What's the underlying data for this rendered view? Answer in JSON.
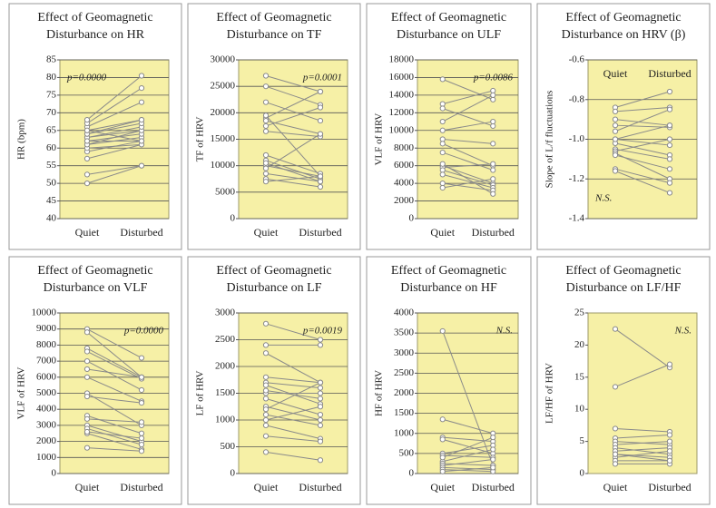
{
  "chart_data": [
    {
      "type": "slope",
      "title": [
        "Effect of Geomagnetic",
        "Disturbance on HR"
      ],
      "y_label": "HR (bpm)",
      "categories": [
        "Quiet",
        "Disturbed"
      ],
      "ylim": [
        40,
        85
      ],
      "yticks": [
        40,
        45,
        50,
        55,
        60,
        65,
        70,
        75,
        80,
        85
      ],
      "annotation": "p=0.0000",
      "annotation_position": "top-left",
      "xlabels": "bottom",
      "grid": true,
      "color": "#8a8a8a",
      "series": [
        {
          "values": [
            50,
            55
          ]
        },
        {
          "values": [
            52.5,
            55
          ]
        },
        {
          "values": [
            57,
            61
          ]
        },
        {
          "values": [
            59,
            62
          ]
        },
        {
          "values": [
            60,
            61
          ]
        },
        {
          "values": [
            61,
            63
          ]
        },
        {
          "values": [
            61,
            65
          ]
        },
        {
          "values": [
            62,
            64
          ]
        },
        {
          "values": [
            63,
            65
          ]
        },
        {
          "values": [
            63,
            66
          ]
        },
        {
          "values": [
            64,
            68
          ]
        },
        {
          "values": [
            64,
            67
          ]
        },
        {
          "values": [
            65,
            68
          ]
        },
        {
          "values": [
            66,
            73
          ]
        },
        {
          "values": [
            67,
            77
          ]
        },
        {
          "values": [
            68,
            80.5
          ]
        },
        {
          "values": [
            62,
            62
          ]
        },
        {
          "values": [
            65,
            62
          ]
        }
      ]
    },
    {
      "type": "slope",
      "title": [
        "Effect of Geomagnetic",
        "Disturbance on TF"
      ],
      "y_label": "TF of HRV",
      "categories": [
        "Quiet",
        "Disturbed"
      ],
      "ylim": [
        0,
        30000
      ],
      "yticks": [
        0,
        5000,
        10000,
        15000,
        20000,
        25000,
        30000
      ],
      "annotation": "p=0.0001",
      "annotation_position": "top-right",
      "xlabels": "bottom",
      "grid": true,
      "color": "#8a8a8a",
      "series": [
        {
          "values": [
            27000,
            24000
          ]
        },
        {
          "values": [
            25000,
            21500
          ]
        },
        {
          "values": [
            22000,
            18500
          ]
        },
        {
          "values": [
            19000,
            24000
          ]
        },
        {
          "values": [
            18500,
            16000
          ]
        },
        {
          "values": [
            17500,
            21000
          ]
        },
        {
          "values": [
            16500,
            15500
          ]
        },
        {
          "values": [
            12000,
            8500
          ]
        },
        {
          "values": [
            11000,
            7500
          ]
        },
        {
          "values": [
            10000,
            8000
          ]
        },
        {
          "values": [
            9500,
            16000
          ]
        },
        {
          "values": [
            8500,
            7000
          ]
        },
        {
          "values": [
            7500,
            6000
          ]
        },
        {
          "values": [
            7000,
            8000
          ]
        },
        {
          "values": [
            19500,
            8000
          ]
        },
        {
          "values": [
            10500,
            7000
          ]
        }
      ]
    },
    {
      "type": "slope",
      "title": [
        "Effect of Geomagnetic",
        "Disturbance on ULF"
      ],
      "y_label": "VLF of HRV",
      "categories": [
        "Quiet",
        "Disturbed"
      ],
      "ylim": [
        0,
        18000
      ],
      "yticks": [
        0,
        2000,
        4000,
        6000,
        8000,
        10000,
        12000,
        14000,
        16000,
        18000
      ],
      "annotation": "p=0.0086",
      "annotation_position": "top-right",
      "xlabels": "bottom",
      "grid": true,
      "color": "#8a8a8a",
      "series": [
        {
          "values": [
            15800,
            13500
          ]
        },
        {
          "values": [
            13000,
            14500
          ]
        },
        {
          "values": [
            12500,
            10500
          ]
        },
        {
          "values": [
            11000,
            14000
          ]
        },
        {
          "values": [
            10000,
            11000
          ]
        },
        {
          "values": [
            9000,
            8500
          ]
        },
        {
          "values": [
            8500,
            6000
          ]
        },
        {
          "values": [
            7500,
            5500
          ]
        },
        {
          "values": [
            6000,
            4000
          ]
        },
        {
          "values": [
            5800,
            6200
          ]
        },
        {
          "values": [
            5500,
            3800
          ]
        },
        {
          "values": [
            5000,
            3500
          ]
        },
        {
          "values": [
            4000,
            3200
          ]
        },
        {
          "values": [
            3500,
            4500
          ]
        },
        {
          "values": [
            6200,
            2800
          ]
        }
      ]
    },
    {
      "type": "slope",
      "title": [
        "Effect of Geomagnetic",
        "Disturbance on HRV (β)"
      ],
      "y_label": "Slope of L/f fluctuations",
      "categories": [
        "Quiet",
        "Disturbed"
      ],
      "ylim": [
        -1.4,
        -0.6
      ],
      "yticks": [
        -1.4,
        -1.2,
        {
          "value": -1,
          "label": "-1.0"
        },
        -0.8,
        -0.6
      ],
      "annotation": "N.S.",
      "annotation_position": "bottom-left",
      "xlabels": "top",
      "grid": true,
      "color": "#8a8a8a",
      "series": [
        {
          "values": [
            -0.84,
            -0.76
          ]
        },
        {
          "values": [
            -0.86,
            -0.84
          ]
        },
        {
          "values": [
            -0.9,
            -0.93
          ]
        },
        {
          "values": [
            -0.93,
            -0.94
          ]
        },
        {
          "values": [
            -0.96,
            -0.85
          ]
        },
        {
          "values": [
            -1,
            -1.03
          ]
        },
        {
          "values": [
            -1.02,
            -1.08
          ]
        },
        {
          "values": [
            -1.05,
            -1.1
          ]
        },
        {
          "values": [
            -1.06,
            -1
          ]
        },
        {
          "values": [
            -1.07,
            -1.2
          ]
        },
        {
          "values": [
            -1.08,
            -1.15
          ]
        },
        {
          "values": [
            -1.15,
            -1.22
          ]
        },
        {
          "values": [
            -1.16,
            -1.27
          ]
        },
        {
          "values": [
            -1,
            -0.93
          ]
        }
      ]
    },
    {
      "type": "slope",
      "title": [
        "Effect of Geomagnetic",
        "Disturbance on VLF"
      ],
      "y_label": "VLF of HRV",
      "categories": [
        "Quiet",
        "Disturbed"
      ],
      "ylim": [
        0,
        10000
      ],
      "yticks": [
        0,
        1000,
        2000,
        3000,
        4000,
        5000,
        6000,
        7000,
        8000,
        9000,
        10000
      ],
      "annotation": "p=0.0000",
      "annotation_position": "top-right",
      "xlabels": "bottom",
      "grid": true,
      "color": "#8a8a8a",
      "series": [
        {
          "values": [
            9000,
            7200
          ]
        },
        {
          "values": [
            8800,
            6000
          ]
        },
        {
          "values": [
            7800,
            6000
          ]
        },
        {
          "values": [
            7600,
            5900
          ]
        },
        {
          "values": [
            7000,
            5200
          ]
        },
        {
          "values": [
            6500,
            6000
          ]
        },
        {
          "values": [
            6000,
            4500
          ]
        },
        {
          "values": [
            5000,
            3000
          ]
        },
        {
          "values": [
            4800,
            4400
          ]
        },
        {
          "values": [
            3600,
            2500
          ]
        },
        {
          "values": [
            3400,
            3200
          ]
        },
        {
          "values": [
            3000,
            2000
          ]
        },
        {
          "values": [
            2800,
            1800
          ]
        },
        {
          "values": [
            2500,
            1500
          ]
        },
        {
          "values": [
            1600,
            1400
          ]
        },
        {
          "values": [
            2600,
            2200
          ]
        }
      ]
    },
    {
      "type": "slope",
      "title": [
        "Effect of Geomagnetic",
        "Disturbance on LF"
      ],
      "y_label": "LF of HRV",
      "categories": [
        "Quiet",
        "Disturbed"
      ],
      "ylim": [
        0,
        3000
      ],
      "yticks": [
        0,
        500,
        1000,
        1500,
        2000,
        2500,
        3000
      ],
      "annotation": "p=0.0019",
      "annotation_position": "top-right",
      "xlabels": "bottom",
      "grid": true,
      "color": "#8a8a8a",
      "series": [
        {
          "values": [
            2800,
            2500
          ]
        },
        {
          "values": [
            2400,
            2400
          ]
        },
        {
          "values": [
            2250,
            1700
          ]
        },
        {
          "values": [
            1800,
            1700
          ]
        },
        {
          "values": [
            1700,
            1600
          ]
        },
        {
          "values": [
            1650,
            1300
          ]
        },
        {
          "values": [
            1500,
            1500
          ]
        },
        {
          "values": [
            1400,
            1100
          ]
        },
        {
          "values": [
            1250,
            1000
          ]
        },
        {
          "values": [
            1200,
            1700
          ]
        },
        {
          "values": [
            1100,
            900
          ]
        },
        {
          "values": [
            1000,
            1250
          ]
        },
        {
          "values": [
            900,
            650
          ]
        },
        {
          "values": [
            700,
            600
          ]
        },
        {
          "values": [
            400,
            250
          ]
        },
        {
          "values": [
            1550,
            1400
          ]
        }
      ]
    },
    {
      "type": "slope",
      "title": [
        "Effect of Geomagnetic",
        "Disturbance on HF"
      ],
      "y_label": "HF of HRV",
      "categories": [
        "Quiet",
        "Disturbed"
      ],
      "ylim": [
        0,
        4000
      ],
      "yticks": [
        0,
        500,
        1000,
        1500,
        2000,
        2500,
        3000,
        3500,
        4000
      ],
      "annotation": "N.S.",
      "annotation_position": "top-right",
      "xlabels": "bottom",
      "grid": true,
      "color": "#8a8a8a",
      "series": [
        {
          "values": [
            3550,
            200
          ]
        },
        {
          "values": [
            1350,
            1000
          ]
        },
        {
          "values": [
            900,
            800
          ]
        },
        {
          "values": [
            850,
            500
          ]
        },
        {
          "values": [
            500,
            700
          ]
        },
        {
          "values": [
            450,
            400
          ]
        },
        {
          "values": [
            300,
            600
          ]
        },
        {
          "values": [
            250,
            200
          ]
        },
        {
          "values": [
            200,
            350
          ]
        },
        {
          "values": [
            150,
            100
          ]
        },
        {
          "values": [
            100,
            50
          ]
        },
        {
          "values": [
            50,
            150
          ]
        },
        {
          "values": [
            400,
            900
          ]
        }
      ]
    },
    {
      "type": "slope",
      "title": [
        "Effect of Geomagnetic",
        "Disturbance on LF/HF"
      ],
      "y_label": "LF/HF of HRV",
      "categories": [
        "Quiet",
        "Disturbed"
      ],
      "ylim": [
        0,
        25
      ],
      "yticks": [
        0,
        5,
        10,
        15,
        20,
        25
      ],
      "annotation": "N.S.",
      "annotation_position": "top-right",
      "xlabels": "bottom",
      "grid": false,
      "color": "#8a8a8a",
      "series": [
        {
          "values": [
            22.5,
            16.5
          ]
        },
        {
          "values": [
            13.5,
            17
          ]
        },
        {
          "values": [
            7,
            6.5
          ]
        },
        {
          "values": [
            5.5,
            6
          ]
        },
        {
          "values": [
            5,
            4.5
          ]
        },
        {
          "values": [
            4.5,
            5
          ]
        },
        {
          "values": [
            4,
            3
          ]
        },
        {
          "values": [
            3.5,
            4
          ]
        },
        {
          "values": [
            3,
            2.5
          ]
        },
        {
          "values": [
            2.5,
            3.5
          ]
        },
        {
          "values": [
            2,
            2
          ]
        },
        {
          "values": [
            1.5,
            1.5
          ]
        },
        {
          "values": [
            3,
            2
          ]
        }
      ]
    }
  ]
}
